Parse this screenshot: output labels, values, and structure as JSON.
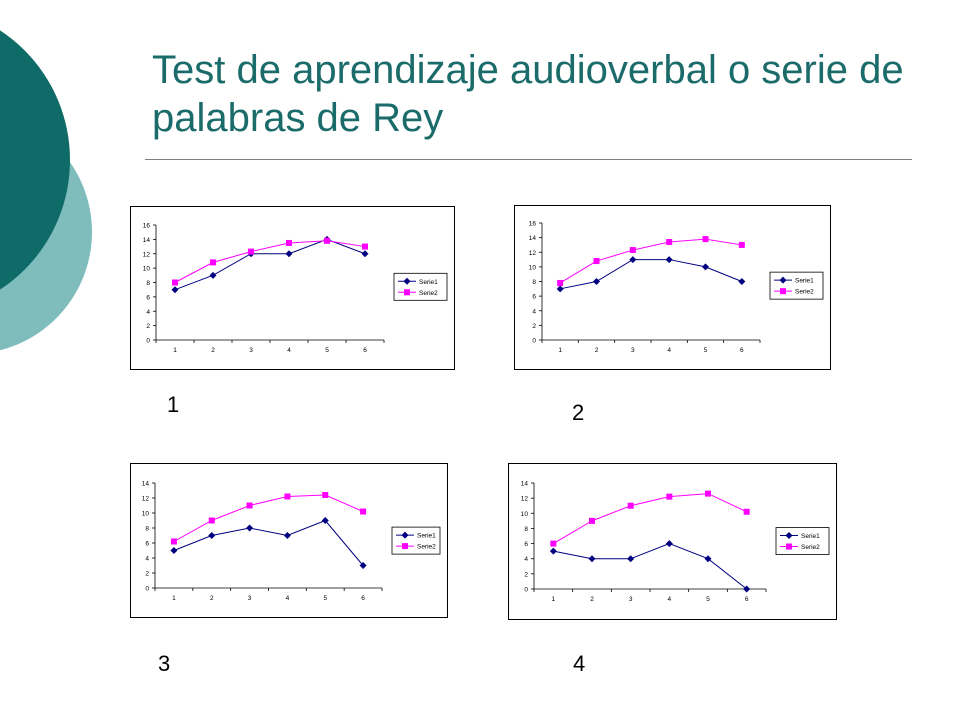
{
  "slide": {
    "title": "Test de aprendizaje audioverbal o serie de palabras de Rey",
    "theme_colors": {
      "title": "#1a6b69",
      "circle_dark": "#0f6b67",
      "circle_light": "#7fbcbc",
      "rule": "#7f7f7f"
    }
  },
  "panel_labels": [
    "1",
    "2",
    "3",
    "4"
  ],
  "chart_data": [
    {
      "type": "line",
      "categories": [
        "1",
        "2",
        "3",
        "4",
        "5",
        "6"
      ],
      "ylim": [
        0,
        16
      ],
      "yticks": [
        "0",
        "2",
        "4",
        "6",
        "8",
        "10",
        "12",
        "14",
        "16"
      ],
      "legend_placement": "right",
      "series": [
        {
          "name": "Serie1",
          "values": [
            7,
            9,
            12,
            12,
            14,
            12
          ],
          "color": "#000080",
          "marker": "diamond"
        },
        {
          "name": "Serie2",
          "values": [
            8,
            10.8,
            12.3,
            13.5,
            13.8,
            13
          ],
          "color": "#ff00ff",
          "marker": "square"
        }
      ]
    },
    {
      "type": "line",
      "categories": [
        "1",
        "2",
        "3",
        "4",
        "5",
        "6"
      ],
      "ylim": [
        0,
        16
      ],
      "yticks": [
        "0",
        "2",
        "4",
        "6",
        "8",
        "10",
        "12",
        "14",
        "16"
      ],
      "legend_placement": "right",
      "series": [
        {
          "name": "Serie1",
          "values": [
            7,
            8,
            11,
            11,
            10,
            8
          ],
          "color": "#000080",
          "marker": "diamond"
        },
        {
          "name": "Serie2",
          "values": [
            7.8,
            10.8,
            12.3,
            13.4,
            13.8,
            13
          ],
          "color": "#ff00ff",
          "marker": "square"
        }
      ]
    },
    {
      "type": "line",
      "categories": [
        "1",
        "2",
        "3",
        "4",
        "5",
        "6"
      ],
      "ylim": [
        0,
        14
      ],
      "yticks": [
        "0",
        "2",
        "4",
        "6",
        "8",
        "10",
        "12",
        "14"
      ],
      "legend_placement": "right",
      "series": [
        {
          "name": "Serie1",
          "values": [
            5,
            7,
            8,
            7,
            9,
            3
          ],
          "color": "#000080",
          "marker": "diamond"
        },
        {
          "name": "Serie2",
          "values": [
            6.2,
            9,
            11,
            12.2,
            12.4,
            10.2
          ],
          "color": "#ff00ff",
          "marker": "square"
        }
      ]
    },
    {
      "type": "line",
      "categories": [
        "1",
        "2",
        "3",
        "4",
        "5",
        "6"
      ],
      "ylim": [
        0,
        14
      ],
      "yticks": [
        "0",
        "2",
        "4",
        "6",
        "8",
        "10",
        "12",
        "14"
      ],
      "legend_placement": "right",
      "series": [
        {
          "name": "Serie1",
          "values": [
            5,
            4,
            4,
            6,
            4,
            0
          ],
          "color": "#000080",
          "marker": "diamond"
        },
        {
          "name": "Serie2",
          "values": [
            6,
            9,
            11,
            12.2,
            12.6,
            10.2
          ],
          "color": "#ff00ff",
          "marker": "square"
        }
      ]
    }
  ]
}
